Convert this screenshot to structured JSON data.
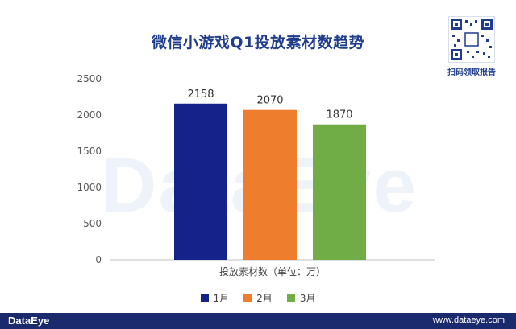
{
  "title": "微信小游戏Q1投放素材数趋势",
  "qr_caption": "扫码领取报告",
  "watermark": "DataEye",
  "footer": {
    "logo": "DataEye",
    "url": "www.dataeye.com"
  },
  "colors": {
    "jan": "#14228a",
    "feb": "#ef7d2e",
    "mar": "#70ad47",
    "title": "#1f3d8a",
    "footer": "#1a2a6c"
  },
  "chart_data": {
    "type": "bar",
    "title": "微信小游戏Q1投放素材数趋势",
    "xlabel": "投放素材数（单位：万）",
    "ylabel": "",
    "ylim": [
      0,
      2500
    ],
    "yticks": [
      0,
      500,
      1000,
      1500,
      2000,
      2500
    ],
    "grid": false,
    "legend": "bottom",
    "series": [
      {
        "name": "1月",
        "value": 2158,
        "color": "#14228a"
      },
      {
        "name": "2月",
        "value": 2070,
        "color": "#ef7d2e"
      },
      {
        "name": "3月",
        "value": 1870,
        "color": "#70ad47"
      }
    ]
  }
}
